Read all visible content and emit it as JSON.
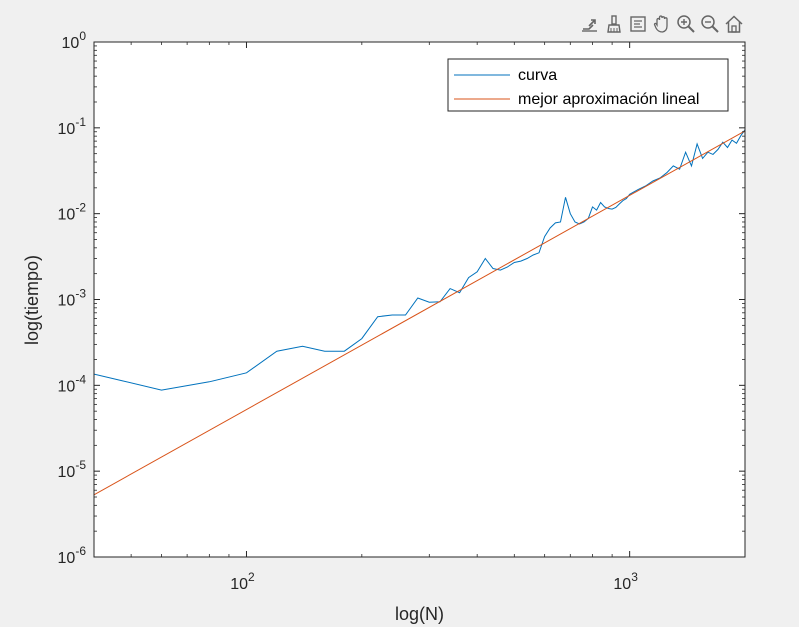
{
  "toolbar": {
    "icons": [
      "export-icon",
      "brush-icon",
      "datatip-icon",
      "pan-icon",
      "zoom-in-icon",
      "zoom-out-icon",
      "home-icon"
    ]
  },
  "chart_data": {
    "type": "line",
    "title": "",
    "xlabel": "log(N)",
    "ylabel": "log(tiempo)",
    "xscale": "log",
    "yscale": "log",
    "xlim": [
      40,
      2000
    ],
    "ylim": [
      1e-06,
      1
    ],
    "grid": false,
    "legend_position": "top-right",
    "x_ticks": [
      {
        "value": 100,
        "base": "10",
        "exp": "2"
      },
      {
        "value": 1000,
        "base": "10",
        "exp": "3"
      }
    ],
    "y_ticks": [
      {
        "value": 1e-06,
        "base": "10",
        "exp": "-6"
      },
      {
        "value": 1e-05,
        "base": "10",
        "exp": "-5"
      },
      {
        "value": 0.0001,
        "base": "10",
        "exp": "-4"
      },
      {
        "value": 0.001,
        "base": "10",
        "exp": "-3"
      },
      {
        "value": 0.01,
        "base": "10",
        "exp": "-2"
      },
      {
        "value": 0.1,
        "base": "10",
        "exp": "-1"
      },
      {
        "value": 1,
        "base": "10",
        "exp": "0"
      }
    ],
    "series": [
      {
        "name": "curva",
        "color": "#0072bd",
        "x": [
          40,
          60,
          80,
          100,
          120,
          140,
          160,
          180,
          200,
          220,
          240,
          260,
          280,
          300,
          320,
          340,
          360,
          380,
          400,
          420,
          440,
          460,
          480,
          500,
          520,
          540,
          560,
          580,
          600,
          620,
          640,
          660,
          680,
          700,
          720,
          740,
          760,
          780,
          800,
          820,
          840,
          860,
          880,
          900,
          920,
          940,
          960,
          980,
          1000,
          1050,
          1100,
          1150,
          1200,
          1250,
          1300,
          1350,
          1400,
          1450,
          1500,
          1550,
          1600,
          1650,
          1700,
          1750,
          1800,
          1850,
          1900,
          1950,
          2000
        ],
        "y": [
          0.000135,
          8.8e-05,
          0.00011,
          0.00014,
          0.00025,
          0.000285,
          0.00025,
          0.00025,
          0.00035,
          0.00063,
          0.00066,
          0.00066,
          0.00104,
          0.00093,
          0.00094,
          0.00134,
          0.0012,
          0.0018,
          0.0021,
          0.003,
          0.0023,
          0.0022,
          0.0024,
          0.0027,
          0.0028,
          0.003,
          0.0033,
          0.0035,
          0.0054,
          0.0068,
          0.0078,
          0.008,
          0.0155,
          0.01,
          0.008,
          0.0076,
          0.008,
          0.0088,
          0.012,
          0.011,
          0.0135,
          0.012,
          0.0115,
          0.0113,
          0.0118,
          0.013,
          0.0142,
          0.015,
          0.0168,
          0.019,
          0.021,
          0.024,
          0.026,
          0.03,
          0.036,
          0.033,
          0.052,
          0.036,
          0.065,
          0.044,
          0.052,
          0.049,
          0.056,
          0.068,
          0.059,
          0.072,
          0.066,
          0.081,
          0.095
        ]
      },
      {
        "name": "mejor aproximación lineal",
        "color": "#d95319",
        "x": [
          40,
          2000
        ],
        "y": [
          5.3e-06,
          0.092
        ]
      }
    ]
  }
}
